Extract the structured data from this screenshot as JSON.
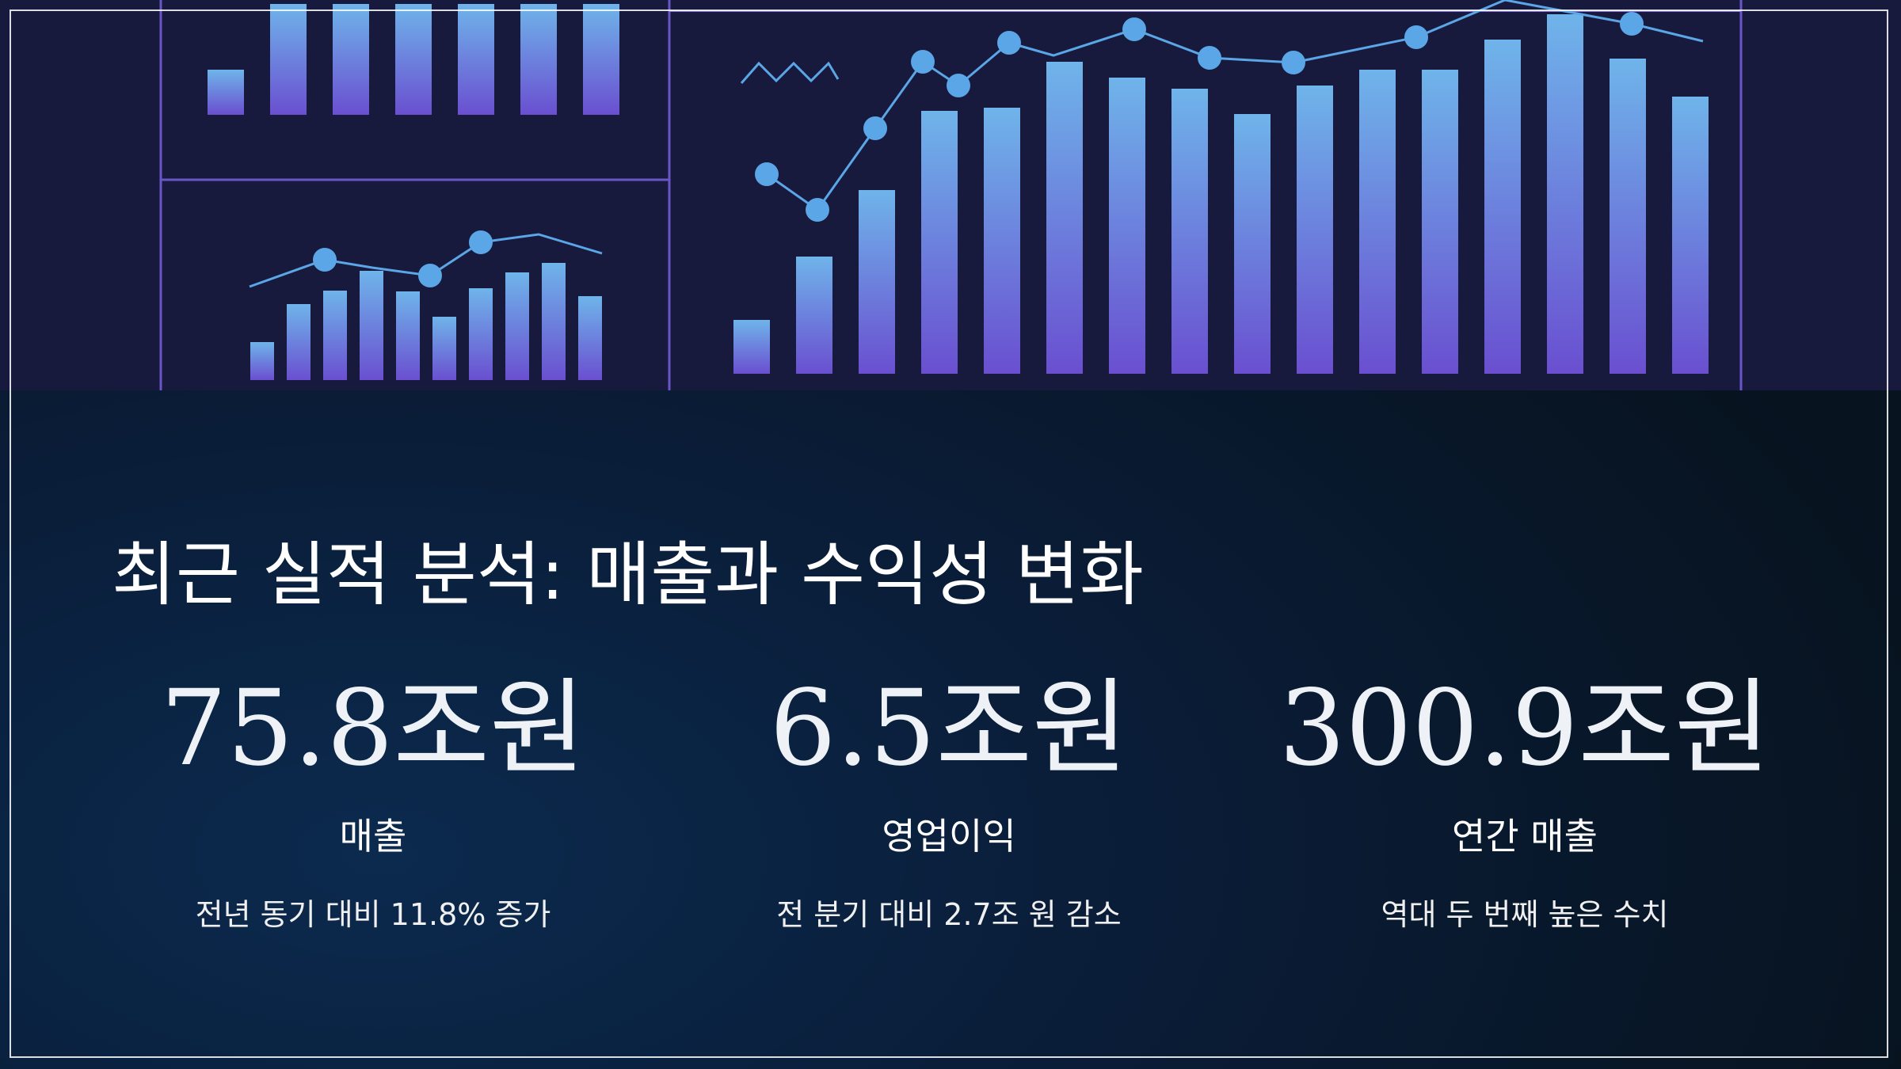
{
  "slide": {
    "title": "최근 실적 분석: 매출과 수익성 변화",
    "stats": [
      {
        "value": "75.8조원",
        "label": "매출",
        "note": "전년 동기 대비 11.8% 증가"
      },
      {
        "value": "6.5조원",
        "label": "영업이익",
        "note": "전 분기 대비 2.7조 원 감소"
      },
      {
        "value": "300.9조원",
        "label": "연간 매출",
        "note": "역대 두 번째 높은 수치"
      }
    ]
  }
}
